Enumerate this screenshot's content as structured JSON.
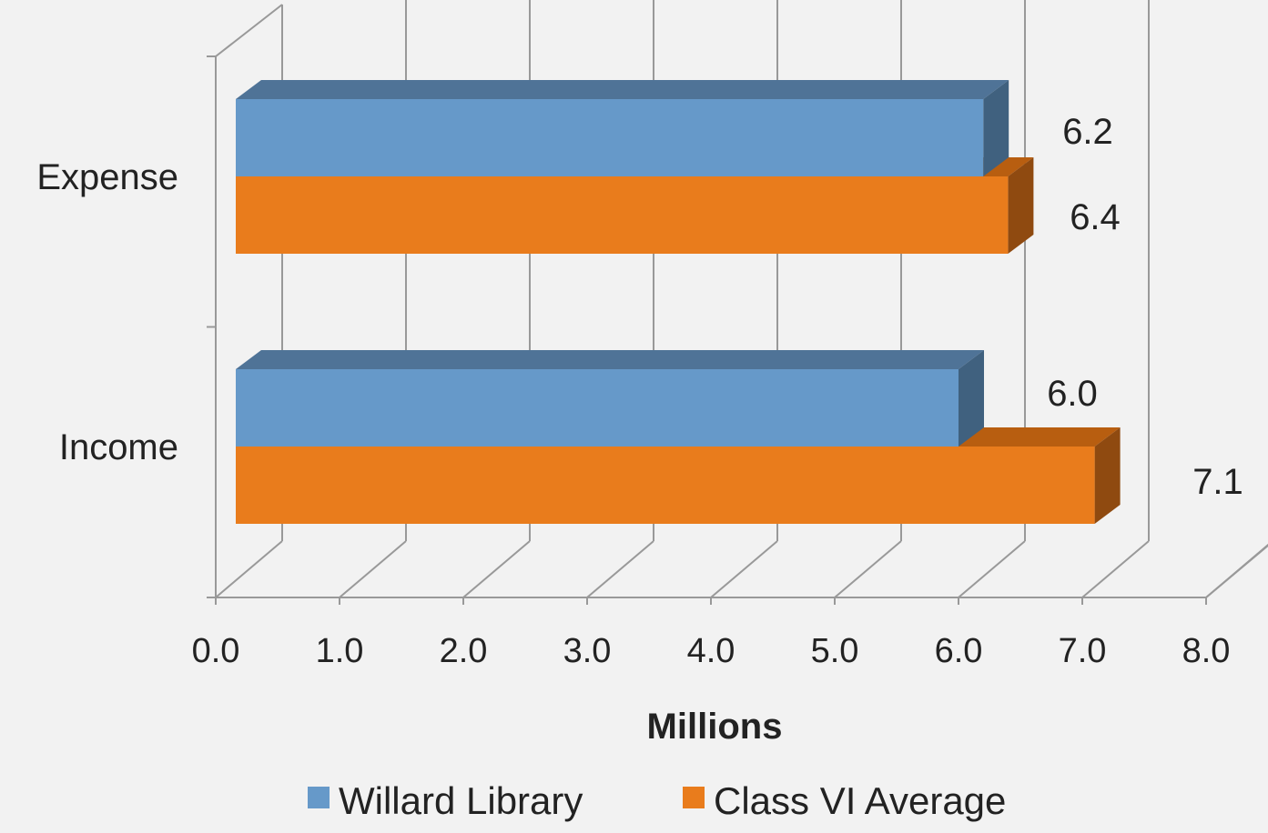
{
  "chart_data": {
    "type": "bar",
    "orientation": "horizontal",
    "style": "3d",
    "categories": [
      "Expense",
      "Income"
    ],
    "series": [
      {
        "name": "Willard Library",
        "values": [
          6.2,
          6.0
        ],
        "labels": [
          "6.2",
          "6.0"
        ],
        "color": "#6699c9",
        "top_color": "#4f7397",
        "side_color": "#40617f"
      },
      {
        "name": "Class VI Average",
        "values": [
          6.4,
          7.1
        ],
        "labels": [
          "6.4",
          "7.1"
        ],
        "color": "#e97c1c",
        "top_color": "#b85e10",
        "side_color": "#8f4a10"
      }
    ],
    "xlim": [
      0,
      8
    ],
    "xticks": [
      "0.0",
      "1.0",
      "2.0",
      "3.0",
      "4.0",
      "5.0",
      "6.0",
      "7.0",
      "8.0"
    ],
    "xlabel": "Millions",
    "grid": true,
    "legend": "bottom",
    "colors": {
      "background": "#f2f2f2",
      "grid": "#999999",
      "text": "#222222"
    }
  }
}
